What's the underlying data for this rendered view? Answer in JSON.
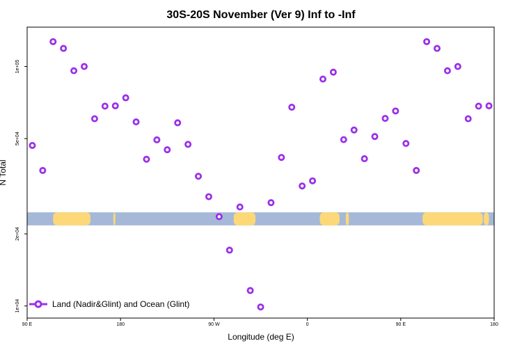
{
  "chart_data": {
    "type": "scatter",
    "title": "30S-20S November (Ver 9)   Inf to -Inf",
    "xlabel": "Longitude (deg E)",
    "ylabel": "N Total",
    "yscale": "log",
    "xlim": [
      -90,
      360
    ],
    "ylim": [
      8900,
      146000
    ],
    "x_ticks": [
      {
        "value": -90,
        "label": "90 E"
      },
      {
        "value": 0,
        "label": "180"
      },
      {
        "value": 90,
        "label": "90 W"
      },
      {
        "value": 180,
        "label": "0"
      },
      {
        "value": 270,
        "label": "90 E"
      },
      {
        "value": 360,
        "label": "180"
      }
    ],
    "y_ticks": [
      {
        "value": 10000,
        "label": "1e+04"
      },
      {
        "value": 20000,
        "label": "2e+04"
      },
      {
        "value": 50000,
        "label": "5e+04"
      },
      {
        "value": 100000,
        "label": "1e+05"
      }
    ],
    "legend": {
      "label": "Land (Nadir&Glint) and Ocean (Glint)",
      "position": "bottom-left",
      "color": "#9b30e8"
    },
    "series": [
      {
        "name": "Land (Nadir&Glint) and Ocean (Glint)",
        "color": "#9b30e8",
        "points": [
          {
            "x": -85,
            "y": 46800
          },
          {
            "x": -75,
            "y": 36800
          },
          {
            "x": -65,
            "y": 127000
          },
          {
            "x": -55,
            "y": 119000
          },
          {
            "x": -45,
            "y": 96000
          },
          {
            "x": -35,
            "y": 100000
          },
          {
            "x": -25,
            "y": 60500
          },
          {
            "x": -15,
            "y": 68300
          },
          {
            "x": -5,
            "y": 68500
          },
          {
            "x": 5,
            "y": 74000
          },
          {
            "x": 15,
            "y": 58700
          },
          {
            "x": 25,
            "y": 41000
          },
          {
            "x": 35,
            "y": 49400
          },
          {
            "x": 45,
            "y": 44900
          },
          {
            "x": 55,
            "y": 58200
          },
          {
            "x": 65,
            "y": 47300
          },
          {
            "x": 75,
            "y": 34800
          },
          {
            "x": 85,
            "y": 28600
          },
          {
            "x": 95,
            "y": 23600
          },
          {
            "x": 105,
            "y": 17100
          },
          {
            "x": 115,
            "y": 25900
          },
          {
            "x": 125,
            "y": 11600
          },
          {
            "x": 135,
            "y": 9900
          },
          {
            "x": 145,
            "y": 27000
          },
          {
            "x": 155,
            "y": 41700
          },
          {
            "x": 165,
            "y": 67600
          },
          {
            "x": 175,
            "y": 31700
          },
          {
            "x": 185,
            "y": 33300
          },
          {
            "x": 195,
            "y": 88600
          },
          {
            "x": 205,
            "y": 94700
          },
          {
            "x": 215,
            "y": 49500
          },
          {
            "x": 225,
            "y": 54300
          },
          {
            "x": 235,
            "y": 41200
          },
          {
            "x": 245,
            "y": 51000
          },
          {
            "x": 255,
            "y": 60700
          },
          {
            "x": 265,
            "y": 65200
          },
          {
            "x": 275,
            "y": 47700
          },
          {
            "x": 285,
            "y": 36800
          },
          {
            "x": 295,
            "y": 127000
          },
          {
            "x": 305,
            "y": 119000
          },
          {
            "x": 315,
            "y": 96000
          },
          {
            "x": 325,
            "y": 100000
          },
          {
            "x": 335,
            "y": 60500
          },
          {
            "x": 345,
            "y": 68300
          },
          {
            "x": 355,
            "y": 68500
          }
        ]
      }
    ],
    "background_band": {
      "description": "map strip: ocean blue with land yellow",
      "y_range": [
        21700,
        24600
      ],
      "ocean_color": "#a5b8d8",
      "land_color": "#fdd878",
      "land_spans": [
        [
          -65,
          -29
        ],
        [
          -7,
          -5
        ],
        [
          109,
          130
        ],
        [
          127,
          129
        ],
        [
          192,
          211
        ],
        [
          217,
          220
        ],
        [
          291,
          349
        ],
        [
          333,
          340
        ],
        [
          341,
          345
        ],
        [
          350,
          355
        ]
      ]
    }
  }
}
